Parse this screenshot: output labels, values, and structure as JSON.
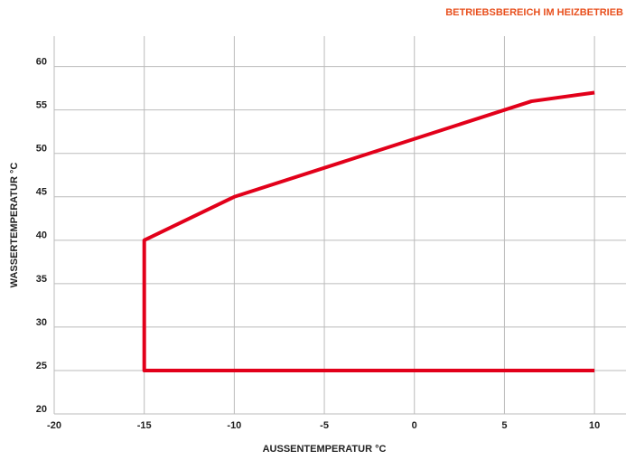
{
  "chart_data": {
    "type": "line",
    "title": "BETRIEBSBEREICH IM HEIZBETRIEB",
    "xlabel": "AUSSENTEMPERATUR °C",
    "ylabel": "WASSERTEMPERATUR °C",
    "series": [
      {
        "color": "#e2001a",
        "x": [
          10,
          6.5,
          -10,
          -15,
          -15,
          10
        ],
        "values": [
          57,
          56,
          45,
          40,
          25,
          25
        ]
      }
    ],
    "xlim": [
      -20,
      11.75
    ],
    "xticks": [
      -20,
      -15,
      -10,
      -5,
      0,
      5,
      10
    ],
    "ylim": [
      20,
      63.5
    ],
    "yticks": [
      20,
      25,
      30,
      35,
      40,
      45,
      50,
      55,
      60
    ],
    "grid": true
  }
}
